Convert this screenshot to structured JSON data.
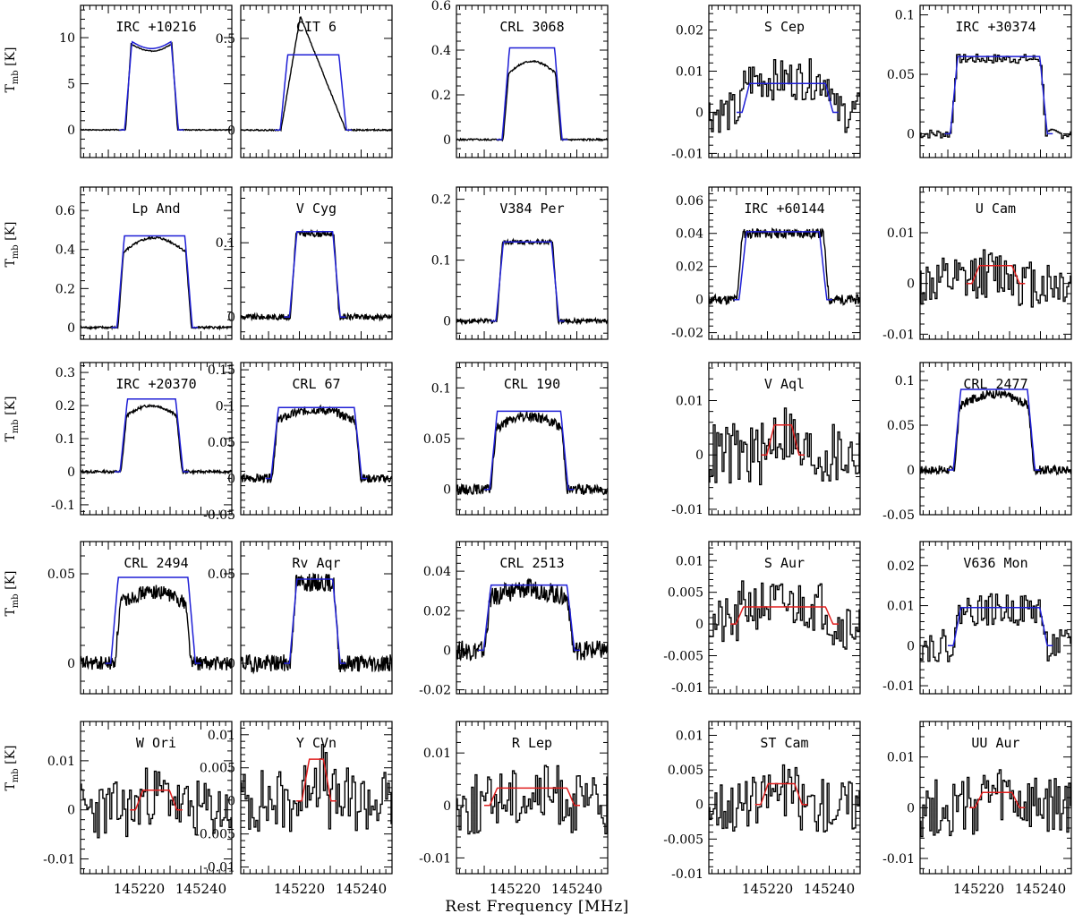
{
  "figure": {
    "xlabel": "Rest Frequency [MHz]",
    "ylabel_main": "T",
    "ylabel_sub": "mb",
    "ylabel_unit": "[K]"
  },
  "colors": {
    "data": "#000000",
    "model_blue": "#1f1fd6",
    "model_red": "#e01f1f"
  },
  "chart_data": [
    {
      "title": "IRC +10216",
      "type": "line",
      "xlim": [
        145201,
        145250
      ],
      "ylim": [
        -3,
        13.5
      ],
      "yticks": [
        0,
        5,
        10
      ],
      "yticklabels": [
        "0",
        "5",
        "10"
      ],
      "lo": 145216.5,
      "hi": 145231.5,
      "peak": 9.5,
      "shape": "horn",
      "noise": 0.05,
      "model": {
        "color": "blue",
        "peak": 9.8,
        "lo": 145216.5,
        "hi": 145231.5
      },
      "xticklabels": false
    },
    {
      "title": "CIT 6",
      "type": "line",
      "xlim": [
        145201,
        145250
      ],
      "ylim": [
        -0.15,
        0.68
      ],
      "yticks": [
        0,
        0.5
      ],
      "yticklabels": [
        "0",
        "0.5"
      ],
      "lo": 145214,
      "hi": 145235,
      "peak": 0.62,
      "shape": "triangle",
      "noise": 0.004,
      "model": {
        "color": "blue",
        "peak": 0.41,
        "lo": 145215,
        "hi": 145234
      },
      "xticklabels": false
    },
    {
      "title": "CRL 3068",
      "type": "line",
      "xlim": [
        145201,
        145250
      ],
      "ylim": [
        -0.08,
        0.6
      ],
      "yticks": [
        0,
        0.2,
        0.4,
        0.6
      ],
      "yticklabels": [
        "0",
        "0.2",
        "0.4",
        "0.6"
      ],
      "lo": 145217,
      "hi": 145234,
      "peak": 0.35,
      "shape": "dome",
      "noise": 0.004,
      "model": {
        "color": "blue",
        "peak": 0.41,
        "lo": 145217,
        "hi": 145234
      },
      "xticklabels": false
    },
    {
      "title": "S Cep",
      "type": "step",
      "xlim": [
        145201,
        145250
      ],
      "ylim": [
        -0.011,
        0.026
      ],
      "yticks": [
        -0.01,
        0,
        0.01,
        0.02
      ],
      "yticklabels": [
        "-0.01",
        "0",
        "0.01",
        "0.02"
      ],
      "lo": 145212,
      "hi": 145241,
      "peak": 0.008,
      "shape": "flat",
      "noise": 0.005,
      "model": {
        "color": "blue",
        "peak": 0.007,
        "lo": 145213,
        "hi": 145240
      },
      "xticklabels": false
    },
    {
      "title": "IRC +30374",
      "type": "step",
      "xlim": [
        145201,
        145250
      ],
      "ylim": [
        -0.02,
        0.108
      ],
      "yticks": [
        0,
        0.05,
        0.1
      ],
      "yticklabels": [
        "0",
        "0.05",
        "0.1"
      ],
      "lo": 145212,
      "hi": 145241,
      "peak": 0.063,
      "shape": "flat",
      "noise": 0.004,
      "model": {
        "color": "blue",
        "peak": 0.065,
        "lo": 145212,
        "hi": 145241
      },
      "xticklabels": false
    },
    {
      "title": "Lp And",
      "type": "line",
      "xlim": [
        145201,
        145250
      ],
      "ylim": [
        -0.06,
        0.72
      ],
      "yticks": [
        0,
        0.2,
        0.4,
        0.6
      ],
      "yticklabels": [
        "0",
        "0.2",
        "0.4",
        "0.6"
      ],
      "lo": 145214,
      "hi": 145236,
      "peak": 0.46,
      "shape": "dome",
      "noise": 0.006,
      "model": {
        "color": "blue",
        "peak": 0.47,
        "lo": 145214,
        "hi": 145236
      },
      "xticklabels": false
    },
    {
      "title": "V Cyg",
      "type": "line",
      "xlim": [
        145201,
        145250
      ],
      "ylim": [
        -0.03,
        0.175
      ],
      "yticks": [
        0,
        0.1
      ],
      "yticklabels": [
        "0",
        "0.1"
      ],
      "lo": 145218,
      "hi": 145232,
      "peak": 0.112,
      "shape": "flat",
      "noise": 0.004,
      "model": {
        "color": "blue",
        "peak": 0.115,
        "lo": 145218,
        "hi": 145232
      },
      "xticklabels": false
    },
    {
      "title": "V384 Per",
      "type": "line",
      "xlim": [
        145201,
        145250
      ],
      "ylim": [
        -0.03,
        0.22
      ],
      "yticks": [
        0,
        0.1,
        0.2
      ],
      "yticklabels": [
        "0",
        "0.1",
        "0.2"
      ],
      "lo": 145215,
      "hi": 145233,
      "peak": 0.13,
      "shape": "flat",
      "noise": 0.004,
      "model": {
        "color": "blue",
        "peak": 0.13,
        "lo": 145215,
        "hi": 145233
      },
      "xticklabels": false
    },
    {
      "title": "IRC +60144",
      "type": "line",
      "xlim": [
        145201,
        145250
      ],
      "ylim": [
        -0.024,
        0.068
      ],
      "yticks": [
        -0.02,
        0,
        0.02,
        0.04,
        0.06
      ],
      "yticklabels": [
        "-0.02",
        "0",
        "0.02",
        "0.04",
        "0.06"
      ],
      "lo": 145211,
      "hi": 145239,
      "peak": 0.04,
      "shape": "flat",
      "noise": 0.003,
      "model": {
        "color": "blue",
        "peak": 0.041,
        "lo": 145212,
        "hi": 145238
      },
      "xticklabels": false
    },
    {
      "title": "U Cam",
      "type": "step",
      "xlim": [
        145201,
        145250
      ],
      "ylim": [
        -0.011,
        0.019
      ],
      "yticks": [
        -0.01,
        0,
        0.01
      ],
      "yticklabels": [
        "-0.01",
        "0",
        "0.01"
      ],
      "lo": 145218,
      "hi": 145233,
      "peak": 0.002,
      "shape": "flat",
      "noise": 0.005,
      "model": {
        "color": "red",
        "peak": 0.0035,
        "lo": 145219,
        "hi": 145232
      },
      "xticklabels": false
    },
    {
      "title": "IRC +20370",
      "type": "line",
      "xlim": [
        145201,
        145250
      ],
      "ylim": [
        -0.13,
        0.33
      ],
      "yticks": [
        -0.1,
        0,
        0.1,
        0.2,
        0.3
      ],
      "yticklabels": [
        "-0.1",
        "0",
        "0.1",
        "0.2",
        "0.3"
      ],
      "lo": 145215,
      "hi": 145233,
      "peak": 0.2,
      "shape": "dome",
      "noise": 0.004,
      "model": {
        "color": "blue",
        "peak": 0.22,
        "lo": 145215,
        "hi": 145233
      },
      "xticklabels": false
    },
    {
      "title": "CRL 67",
      "type": "line",
      "xlim": [
        145201,
        145250
      ],
      "ylim": [
        -0.05,
        0.16
      ],
      "yticks": [
        -0.05,
        0,
        0.05,
        0.1,
        0.15
      ],
      "yticklabels": [
        "-0.05",
        "0",
        "0.05",
        "0.1",
        "0.15"
      ],
      "lo": 145212,
      "hi": 145239,
      "peak": 0.095,
      "shape": "dome",
      "noise": 0.006,
      "model": {
        "color": "blue",
        "peak": 0.098,
        "lo": 145212,
        "hi": 145239
      },
      "xticklabels": false
    },
    {
      "title": "CRL 190",
      "type": "line",
      "xlim": [
        145201,
        145250
      ],
      "ylim": [
        -0.025,
        0.125
      ],
      "yticks": [
        0,
        0.05,
        0.1
      ],
      "yticklabels": [
        "0",
        "0.05",
        "0.1"
      ],
      "lo": 145213,
      "hi": 145236,
      "peak": 0.072,
      "shape": "dome",
      "noise": 0.005,
      "model": {
        "color": "blue",
        "peak": 0.077,
        "lo": 145213,
        "hi": 145236
      },
      "xticklabels": false
    },
    {
      "title": "V Aql",
      "type": "step",
      "xlim": [
        145201,
        145250
      ],
      "ylim": [
        -0.011,
        0.017
      ],
      "yticks": [
        -0.01,
        0,
        0.01
      ],
      "yticklabels": [
        "-0.01",
        "0",
        "0.01"
      ],
      "lo": 145221,
      "hi": 145229,
      "peak": 0.004,
      "shape": "flat",
      "noise": 0.006,
      "model": {
        "color": "red",
        "peak": 0.0055,
        "lo": 145221,
        "hi": 145229
      },
      "xticklabels": false
    },
    {
      "title": "CRL 2477",
      "type": "line",
      "xlim": [
        145201,
        145250
      ],
      "ylim": [
        -0.05,
        0.12
      ],
      "yticks": [
        -0.05,
        0,
        0.05,
        0.1
      ],
      "yticklabels": [
        "-0.05",
        "0",
        "0.05",
        "0.1"
      ],
      "lo": 145213,
      "hi": 145237,
      "peak": 0.085,
      "shape": "dome",
      "noise": 0.005,
      "model": {
        "color": "blue",
        "peak": 0.09,
        "lo": 145213,
        "hi": 145237
      },
      "xticklabels": false
    },
    {
      "title": "CRL 2494",
      "type": "line",
      "xlim": [
        145201,
        145250
      ],
      "ylim": [
        -0.017,
        0.068
      ],
      "yticks": [
        0,
        0.05
      ],
      "yticklabels": [
        "0",
        "0.05"
      ],
      "lo": 145213,
      "hi": 145236,
      "peak": 0.04,
      "shape": "dome",
      "noise": 0.004,
      "model": {
        "color": "blue",
        "peak": 0.048,
        "lo": 145212,
        "hi": 145237
      },
      "xticklabels": false
    },
    {
      "title": "Rv Aqr",
      "type": "line",
      "xlim": [
        145201,
        145250
      ],
      "ylim": [
        -0.017,
        0.068
      ],
      "yticks": [
        0,
        0.05
      ],
      "yticklabels": [
        "0",
        "0.05"
      ],
      "lo": 145218,
      "hi": 145232,
      "peak": 0.045,
      "shape": "flat",
      "noise": 0.005,
      "model": {
        "color": "blue",
        "peak": 0.047,
        "lo": 145218,
        "hi": 145232
      },
      "xticklabels": false
    },
    {
      "title": "CRL 2513",
      "type": "line",
      "xlim": [
        145201,
        145250
      ],
      "ylim": [
        -0.022,
        0.055
      ],
      "yticks": [
        -0.02,
        0,
        0.02,
        0.04
      ],
      "yticklabels": [
        "-0.02",
        "0",
        "0.02",
        "0.04"
      ],
      "lo": 145211,
      "hi": 145238,
      "peak": 0.031,
      "shape": "dome",
      "noise": 0.005,
      "model": {
        "color": "blue",
        "peak": 0.033,
        "lo": 145211,
        "hi": 145238
      },
      "xticklabels": false
    },
    {
      "title": "S Aur",
      "type": "step",
      "xlim": [
        145201,
        145250
      ],
      "ylim": [
        -0.011,
        0.013
      ],
      "yticks": [
        -0.01,
        -0.005,
        0,
        0.005,
        0.01
      ],
      "yticklabels": [
        "-0.01",
        "-0.005",
        "0",
        "0.005",
        "0.01"
      ],
      "lo": 145211,
      "hi": 145240,
      "peak": 0.003,
      "shape": "flat",
      "noise": 0.004,
      "model": {
        "color": "red",
        "peak": 0.0027,
        "lo": 145211,
        "hi": 145240
      },
      "xticklabels": false
    },
    {
      "title": "V636 Mon",
      "type": "step",
      "xlim": [
        145201,
        145250
      ],
      "ylim": [
        -0.012,
        0.026
      ],
      "yticks": [
        -0.01,
        0,
        0.01,
        0.02
      ],
      "yticklabels": [
        "-0.01",
        "0",
        "0.01",
        "0.02"
      ],
      "lo": 145213,
      "hi": 145241,
      "peak": 0.009,
      "shape": "flat",
      "noise": 0.004,
      "model": {
        "color": "blue",
        "peak": 0.0095,
        "lo": 145213,
        "hi": 145241
      },
      "xticklabels": false
    },
    {
      "title": "W Ori",
      "type": "step",
      "xlim": [
        145201,
        145250
      ],
      "ylim": [
        -0.013,
        0.018
      ],
      "yticks": [
        -0.01,
        0,
        0.01
      ],
      "yticklabels": [
        "-0.01",
        "0",
        "0.01"
      ],
      "lo": 145220,
      "hi": 145232,
      "peak": 0.003,
      "shape": "flat",
      "noise": 0.006,
      "model": {
        "color": "red",
        "peak": 0.004,
        "lo": 145220,
        "hi": 145231
      },
      "xticklabels": true,
      "xticks": [
        145220,
        145240
      ]
    },
    {
      "title": "Y CVn",
      "type": "step",
      "xlim": [
        145201,
        145250
      ],
      "ylim": [
        -0.011,
        0.012
      ],
      "yticks": [
        -0.01,
        -0.005,
        0,
        0.005,
        0.01
      ],
      "yticklabels": [
        "-0.01",
        "-0.005",
        "0",
        "0.005",
        "0.01"
      ],
      "lo": 145222,
      "hi": 145229,
      "peak": 0.004,
      "shape": "flat",
      "noise": 0.005,
      "model": {
        "color": "red",
        "peak": 0.0063,
        "lo": 145222,
        "hi": 145229
      },
      "xticklabels": true,
      "xticks": [
        145220,
        145240
      ]
    },
    {
      "title": "R Lep",
      "type": "step",
      "xlim": [
        145201,
        145250
      ],
      "ylim": [
        -0.013,
        0.016
      ],
      "yticks": [
        -0.01,
        0,
        0.01
      ],
      "yticklabels": [
        "-0.01",
        "0",
        "0.01"
      ],
      "lo": 145213,
      "hi": 145238,
      "peak": 0.002,
      "shape": "flat",
      "noise": 0.006,
      "model": {
        "color": "red",
        "peak": 0.0033,
        "lo": 145213,
        "hi": 145238
      },
      "xticklabels": true,
      "xticks": [
        145220,
        145240
      ]
    },
    {
      "title": "ST Cam",
      "type": "step",
      "xlim": [
        145201,
        145250
      ],
      "ylim": [
        -0.01,
        0.012
      ],
      "yticks": [
        -0.01,
        -0.005,
        0,
        0.005,
        0.01
      ],
      "yticklabels": [
        "-0.01",
        "-0.005",
        "0",
        "0.005",
        "0.01"
      ],
      "lo": 145219,
      "hi": 145230,
      "peak": 0.002,
      "shape": "flat",
      "noise": 0.004,
      "model": {
        "color": "red",
        "peak": 0.003,
        "lo": 145219,
        "hi": 145230
      },
      "xticklabels": true,
      "xticks": [
        145220,
        145240
      ]
    },
    {
      "title": "UU Aur",
      "type": "step",
      "xlim": [
        145201,
        145250
      ],
      "ylim": [
        -0.013,
        0.017
      ],
      "yticks": [
        -0.01,
        0,
        0.01
      ],
      "yticklabels": [
        "-0.01",
        "0",
        "0.01"
      ],
      "lo": 145220,
      "hi": 145232,
      "peak": 0.002,
      "shape": "flat",
      "noise": 0.006,
      "model": {
        "color": "red",
        "peak": 0.003,
        "lo": 145220,
        "hi": 145232
      },
      "xticklabels": true,
      "xticks": [
        145220,
        145240
      ]
    }
  ]
}
